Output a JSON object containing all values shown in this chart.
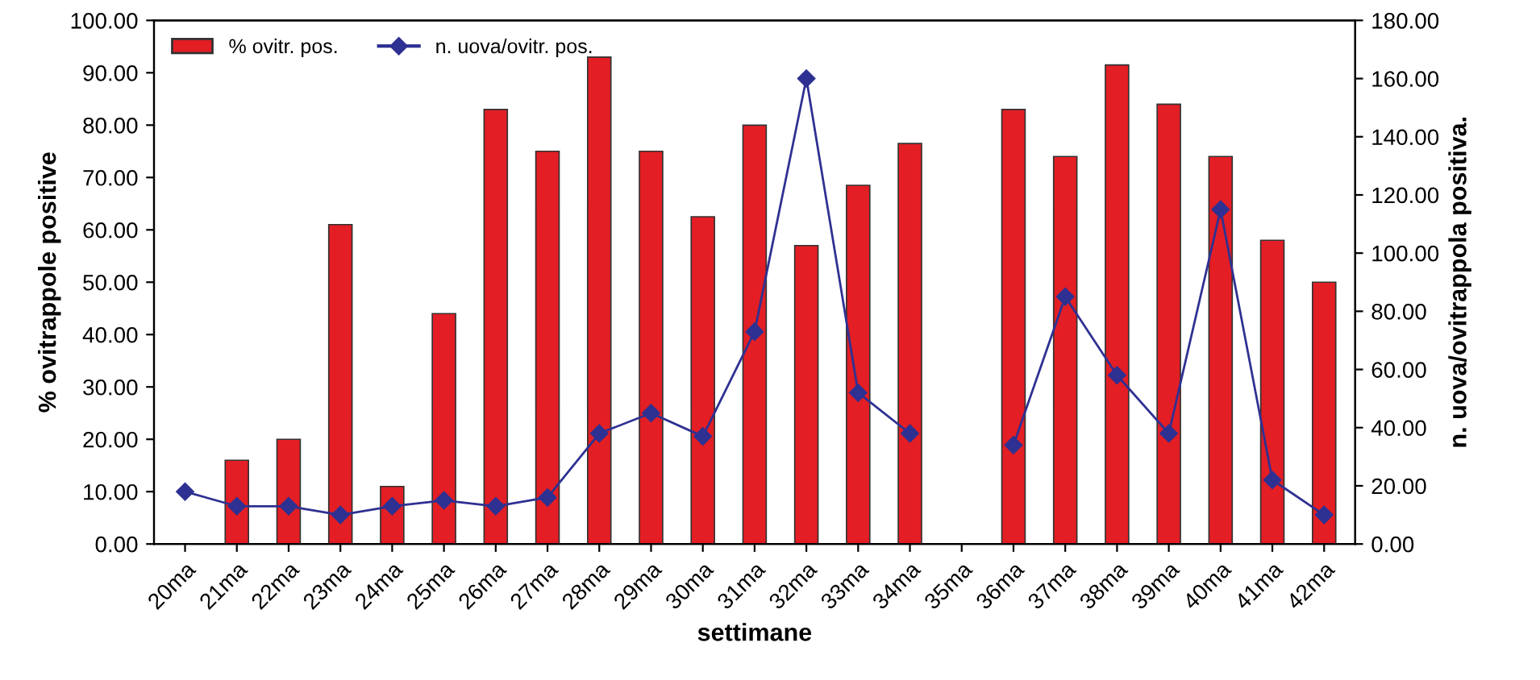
{
  "chart_data": {
    "type": "bar",
    "xlabel": "settimane",
    "ylabel": "% ovitrappole positive",
    "y2label": "n. uova/ovitrappola positiva.",
    "categories": [
      "20ma",
      "21ma",
      "22ma",
      "23ma",
      "24ma",
      "25ma",
      "26ma",
      "27ma",
      "28ma",
      "29ma",
      "30ma",
      "31ma",
      "32ma",
      "33ma",
      "34ma",
      "35ma",
      "36ma",
      "37ma",
      "38ma",
      "39ma",
      "40ma",
      "41ma",
      "42ma"
    ],
    "series": [
      {
        "name": "% ovitr. pos.",
        "color": "#e31e24",
        "values": [
          null,
          16,
          20,
          61,
          11,
          44,
          83,
          75,
          93,
          75,
          62.5,
          80,
          57,
          68.5,
          76.5,
          null,
          83,
          74,
          91.5,
          84,
          74,
          58,
          50
        ]
      },
      {
        "name": "n. uova/ovitr. pos.",
        "type": "line",
        "axis": "y2",
        "color": "#2e3192",
        "marker": "diamond",
        "values": [
          18,
          13,
          13,
          10,
          13,
          15,
          13,
          16,
          38,
          45,
          37,
          73,
          160,
          52,
          38,
          null,
          34,
          85,
          58,
          38,
          115,
          22,
          10
        ]
      }
    ],
    "ylim": [
      0,
      100
    ],
    "yticks": [
      {
        "value": 0,
        "label": "0.00"
      },
      {
        "value": 10,
        "label": "10.00"
      },
      {
        "value": 20,
        "label": "20.00"
      },
      {
        "value": 30,
        "label": "30.00"
      },
      {
        "value": 40,
        "label": "40.00"
      },
      {
        "value": 50,
        "label": "50.00"
      },
      {
        "value": 60,
        "label": "60.00"
      },
      {
        "value": 70,
        "label": "70.00"
      },
      {
        "value": 80,
        "label": "80.00"
      },
      {
        "value": 90,
        "label": "90.00"
      },
      {
        "value": 100,
        "label": "100.00"
      }
    ],
    "y2lim": [
      0,
      180
    ],
    "y2ticks": [
      {
        "value": 0,
        "label": "0.00"
      },
      {
        "value": 20,
        "label": "20.00"
      },
      {
        "value": 40,
        "label": "40.00"
      },
      {
        "value": 60,
        "label": "60.00"
      },
      {
        "value": 80,
        "label": "80.00"
      },
      {
        "value": 100,
        "label": "100.00"
      },
      {
        "value": 120,
        "label": "120.00"
      },
      {
        "value": 140,
        "label": "140.00"
      },
      {
        "value": 160,
        "label": "160.00"
      },
      {
        "value": 180,
        "label": "180.00"
      }
    ],
    "legend": "top left",
    "grid": false
  }
}
